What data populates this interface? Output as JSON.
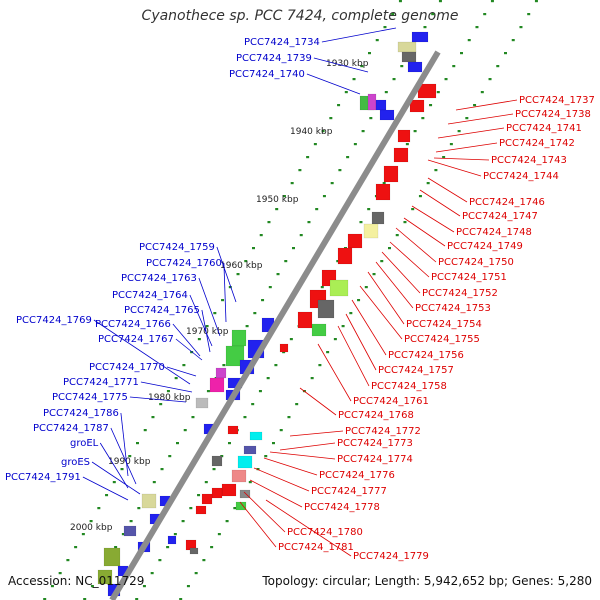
{
  "title": "Cyanothece sp. PCC 7424, complete genome",
  "footer": {
    "accession": "Accession: NC_011729",
    "summary": "Topology: circular; Length: 5,942,652 bp; Genes: 5,280"
  },
  "ticks": [
    "1930 kbp",
    "1940 kbp",
    "1950 kbp",
    "1960 kbp",
    "1970 kbp",
    "1980 kbp",
    "1990 kbp",
    "2000 kbp"
  ],
  "colors": {
    "backbone": "#8c8c8c",
    "left_label": "#0000cc",
    "right_label": "#dd0000",
    "dotted": "#228822"
  },
  "left_labels": [
    "PCC7424_1734",
    "PCC7424_1739",
    "PCC7424_1740",
    "PCC7424_1759",
    "PCC7424_1760",
    "PCC7424_1763",
    "PCC7424_1764",
    "PCC7424_1765",
    "PCC7424_1769",
    "PCC7424_1766",
    "PCC7424_1767",
    "PCC7424_1770",
    "PCC7424_1771",
    "PCC7424_1775",
    "PCC7424_1786",
    "PCC7424_1787",
    "groEL",
    "groES",
    "PCC7424_1791"
  ],
  "right_labels": [
    "PCC7424_1737",
    "PCC7424_1738",
    "PCC7424_1741",
    "PCC7424_1742",
    "PCC7424_1743",
    "PCC7424_1744",
    "PCC7424_1746",
    "PCC7424_1747",
    "PCC7424_1748",
    "PCC7424_1749",
    "PCC7424_1750",
    "PCC7424_1751",
    "PCC7424_1752",
    "PCC7424_1753",
    "PCC7424_1754",
    "PCC7424_1755",
    "PCC7424_1756",
    "PCC7424_1757",
    "PCC7424_1758",
    "PCC7424_1761",
    "PCC7424_1768",
    "PCC7424_1772",
    "PCC7424_1773",
    "PCC7424_1774",
    "PCC7424_1776",
    "PCC7424_1777",
    "PCC7424_1778",
    "PCC7424_1780",
    "PCC7424_1781",
    "PCC7424_1779"
  ]
}
